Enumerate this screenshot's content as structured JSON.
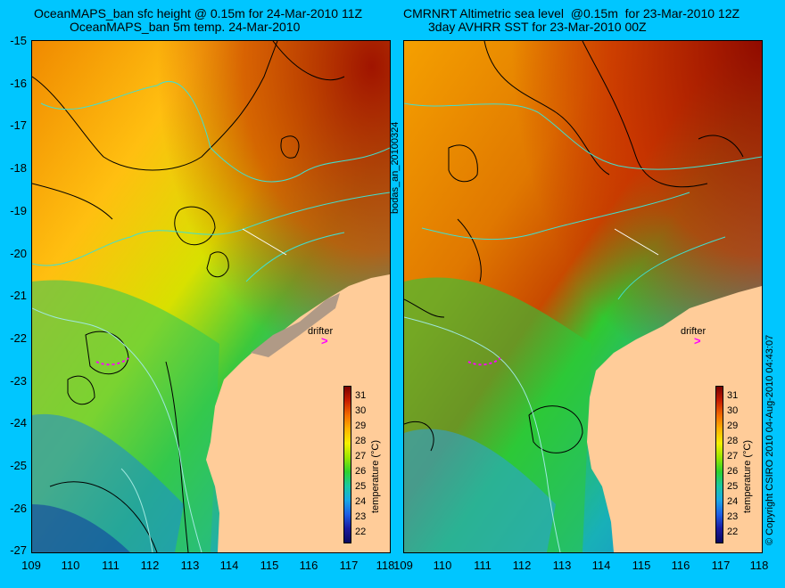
{
  "left_panel": {
    "title_line1": "OceanMAPS_ban sfc height @ 0.15m for 24-Mar-2010 11Z",
    "title_line2": "OceanMAPS_ban 5m temp. 24-Mar-2010"
  },
  "right_panel": {
    "title_line1": "CMRNRT Altimetric sea level  @0.15m  for 23-Mar-2010 12Z",
    "title_line2": "3day AVHRR SST for 23-Mar-2010 00Z"
  },
  "y_ticks": [
    "-15",
    "-16",
    "-17",
    "-18",
    "-19",
    "-20",
    "-21",
    "-22",
    "-23",
    "-24",
    "-25",
    "-26",
    "-27"
  ],
  "x_ticks_left": [
    "109",
    "110",
    "111",
    "112",
    "113",
    "114",
    "115",
    "116",
    "117",
    "118"
  ],
  "x_ticks_right": [
    "109",
    "110",
    "111",
    "112",
    "113",
    "114",
    "115",
    "116",
    "117",
    "118"
  ],
  "colorbar": {
    "label": "temperature (°C)",
    "ticks": [
      "31",
      "30",
      "29",
      "28",
      "27",
      "26",
      "25",
      "24",
      "23",
      "22"
    ]
  },
  "annotations": {
    "drifter": "drifter",
    "vertical_left": "bodas_an_20100324",
    "vertical_right": "© Copyright CSIRO 2010   04-Aug-2010 04:43:07"
  },
  "colors": {
    "background": "#00c6ff",
    "land": "#ffcc99",
    "drifter_marker": "#ff00ff"
  }
}
